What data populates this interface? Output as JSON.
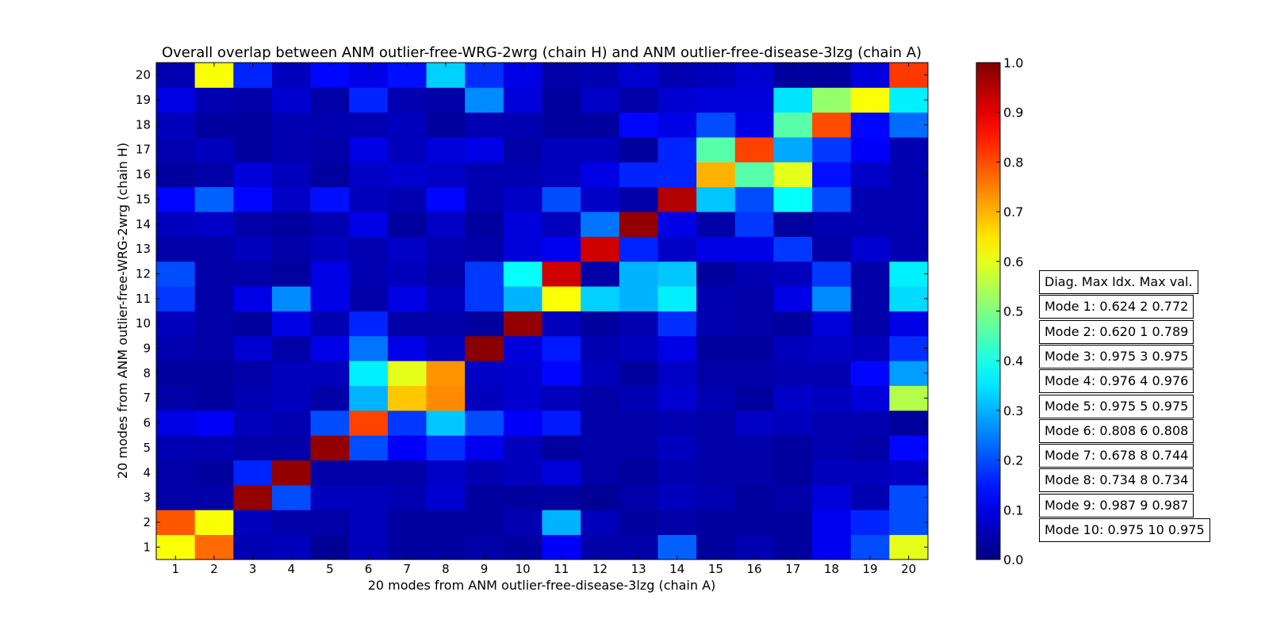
{
  "chart_data": {
    "type": "heatmap",
    "title": "Overall overlap between ANM outlier-free-WRG-2wrg (chain H) and ANM outlier-free-disease-3lzg (chain A)",
    "xlabel": "20 modes from ANM outlier-free-disease-3lzg (chain A)",
    "ylabel": "20 modes from ANM outlier-free-WRG-2wrg (chain H)",
    "x_ticks": [
      "1",
      "2",
      "3",
      "4",
      "5",
      "6",
      "7",
      "8",
      "9",
      "10",
      "11",
      "12",
      "13",
      "14",
      "15",
      "16",
      "17",
      "18",
      "19",
      "20"
    ],
    "y_ticks": [
      "1",
      "2",
      "3",
      "4",
      "5",
      "6",
      "7",
      "8",
      "9",
      "10",
      "11",
      "12",
      "13",
      "14",
      "15",
      "16",
      "17",
      "18",
      "19",
      "20"
    ],
    "colormap": "jet",
    "vmin": 0.0,
    "vmax": 1.0,
    "colorbar_ticks": [
      "0.0",
      "0.1",
      "0.2",
      "0.3",
      "0.4",
      "0.5",
      "0.6",
      "0.7",
      "0.8",
      "0.9",
      "1.0"
    ],
    "matrix": [
      [
        0.62,
        0.77,
        0.05,
        0.06,
        0.02,
        0.06,
        0.03,
        0.03,
        0.04,
        0.03,
        0.12,
        0.04,
        0.04,
        0.22,
        0.03,
        0.05,
        0.03,
        0.11,
        0.2,
        0.6
      ],
      [
        0.79,
        0.62,
        0.06,
        0.04,
        0.04,
        0.06,
        0.03,
        0.03,
        0.03,
        0.05,
        0.3,
        0.06,
        0.03,
        0.04,
        0.03,
        0.03,
        0.03,
        0.11,
        0.16,
        0.2
      ],
      [
        0.04,
        0.04,
        0.98,
        0.2,
        0.06,
        0.06,
        0.05,
        0.08,
        0.03,
        0.03,
        0.03,
        0.02,
        0.04,
        0.06,
        0.05,
        0.03,
        0.04,
        0.09,
        0.05,
        0.2
      ],
      [
        0.04,
        0.03,
        0.16,
        0.98,
        0.04,
        0.04,
        0.04,
        0.07,
        0.05,
        0.06,
        0.09,
        0.04,
        0.03,
        0.05,
        0.04,
        0.04,
        0.03,
        0.06,
        0.06,
        0.07
      ],
      [
        0.05,
        0.05,
        0.04,
        0.04,
        0.98,
        0.2,
        0.12,
        0.17,
        0.11,
        0.06,
        0.03,
        0.04,
        0.04,
        0.06,
        0.04,
        0.04,
        0.03,
        0.05,
        0.04,
        0.13
      ],
      [
        0.1,
        0.12,
        0.06,
        0.05,
        0.2,
        0.81,
        0.18,
        0.32,
        0.2,
        0.12,
        0.15,
        0.04,
        0.04,
        0.05,
        0.04,
        0.07,
        0.06,
        0.05,
        0.05,
        0.03
      ],
      [
        0.04,
        0.03,
        0.05,
        0.06,
        0.04,
        0.3,
        0.68,
        0.74,
        0.06,
        0.08,
        0.06,
        0.04,
        0.05,
        0.08,
        0.05,
        0.03,
        0.07,
        0.06,
        0.09,
        0.55
      ],
      [
        0.03,
        0.03,
        0.04,
        0.06,
        0.06,
        0.36,
        0.6,
        0.73,
        0.07,
        0.08,
        0.13,
        0.06,
        0.03,
        0.07,
        0.04,
        0.04,
        0.05,
        0.05,
        0.13,
        0.28
      ],
      [
        0.05,
        0.04,
        0.08,
        0.04,
        0.1,
        0.24,
        0.1,
        0.06,
        0.99,
        0.09,
        0.15,
        0.05,
        0.06,
        0.1,
        0.03,
        0.03,
        0.06,
        0.07,
        0.06,
        0.17
      ],
      [
        0.06,
        0.04,
        0.03,
        0.1,
        0.05,
        0.16,
        0.04,
        0.04,
        0.03,
        0.98,
        0.06,
        0.03,
        0.05,
        0.17,
        0.05,
        0.04,
        0.03,
        0.09,
        0.04,
        0.1
      ],
      [
        0.18,
        0.04,
        0.1,
        0.26,
        0.1,
        0.04,
        0.1,
        0.06,
        0.18,
        0.3,
        0.62,
        0.33,
        0.3,
        0.36,
        0.05,
        0.04,
        0.1,
        0.26,
        0.04,
        0.34
      ],
      [
        0.2,
        0.04,
        0.04,
        0.03,
        0.1,
        0.05,
        0.06,
        0.04,
        0.18,
        0.38,
        0.92,
        0.04,
        0.3,
        0.32,
        0.03,
        0.05,
        0.06,
        0.18,
        0.04,
        0.36
      ],
      [
        0.04,
        0.04,
        0.06,
        0.04,
        0.06,
        0.05,
        0.07,
        0.05,
        0.04,
        0.09,
        0.11,
        0.92,
        0.16,
        0.07,
        0.1,
        0.1,
        0.18,
        0.04,
        0.08,
        0.05
      ],
      [
        0.06,
        0.07,
        0.04,
        0.03,
        0.05,
        0.1,
        0.03,
        0.07,
        0.03,
        0.09,
        0.06,
        0.24,
        0.98,
        0.1,
        0.04,
        0.18,
        0.03,
        0.05,
        0.05,
        0.05
      ],
      [
        0.13,
        0.22,
        0.13,
        0.07,
        0.14,
        0.06,
        0.05,
        0.13,
        0.05,
        0.07,
        0.2,
        0.07,
        0.04,
        0.95,
        0.32,
        0.2,
        0.38,
        0.2,
        0.05,
        0.05
      ],
      [
        0.03,
        0.04,
        0.09,
        0.06,
        0.03,
        0.07,
        0.08,
        0.07,
        0.05,
        0.05,
        0.06,
        0.1,
        0.16,
        0.16,
        0.7,
        0.46,
        0.6,
        0.14,
        0.07,
        0.05
      ],
      [
        0.05,
        0.06,
        0.03,
        0.05,
        0.04,
        0.1,
        0.06,
        0.09,
        0.1,
        0.04,
        0.06,
        0.06,
        0.03,
        0.16,
        0.46,
        0.81,
        0.29,
        0.18,
        0.12,
        0.05
      ],
      [
        0.06,
        0.03,
        0.03,
        0.05,
        0.05,
        0.05,
        0.06,
        0.03,
        0.05,
        0.05,
        0.03,
        0.03,
        0.13,
        0.1,
        0.2,
        0.1,
        0.46,
        0.8,
        0.13,
        0.23
      ],
      [
        0.1,
        0.05,
        0.04,
        0.08,
        0.04,
        0.16,
        0.05,
        0.04,
        0.26,
        0.09,
        0.03,
        0.07,
        0.04,
        0.08,
        0.09,
        0.09,
        0.35,
        0.52,
        0.62,
        0.36
      ],
      [
        0.05,
        0.62,
        0.16,
        0.06,
        0.13,
        0.1,
        0.14,
        0.33,
        0.17,
        0.1,
        0.04,
        0.05,
        0.08,
        0.05,
        0.06,
        0.08,
        0.03,
        0.03,
        0.09,
        0.82
      ]
    ]
  },
  "info_boxes": [
    "Diag. Max Idx. Max val.",
    "Mode 1: 0.624 2 0.772",
    "Mode 2: 0.620 1 0.789",
    "Mode 3: 0.975 3 0.975",
    "Mode 4: 0.976 4 0.976",
    "Mode 5: 0.975 5 0.975",
    "Mode 6: 0.808 6 0.808",
    "Mode 7: 0.678 8 0.744",
    "Mode 8: 0.734 8 0.734",
    "Mode 9: 0.987 9 0.987",
    "Mode 10: 0.975 10 0.975"
  ]
}
